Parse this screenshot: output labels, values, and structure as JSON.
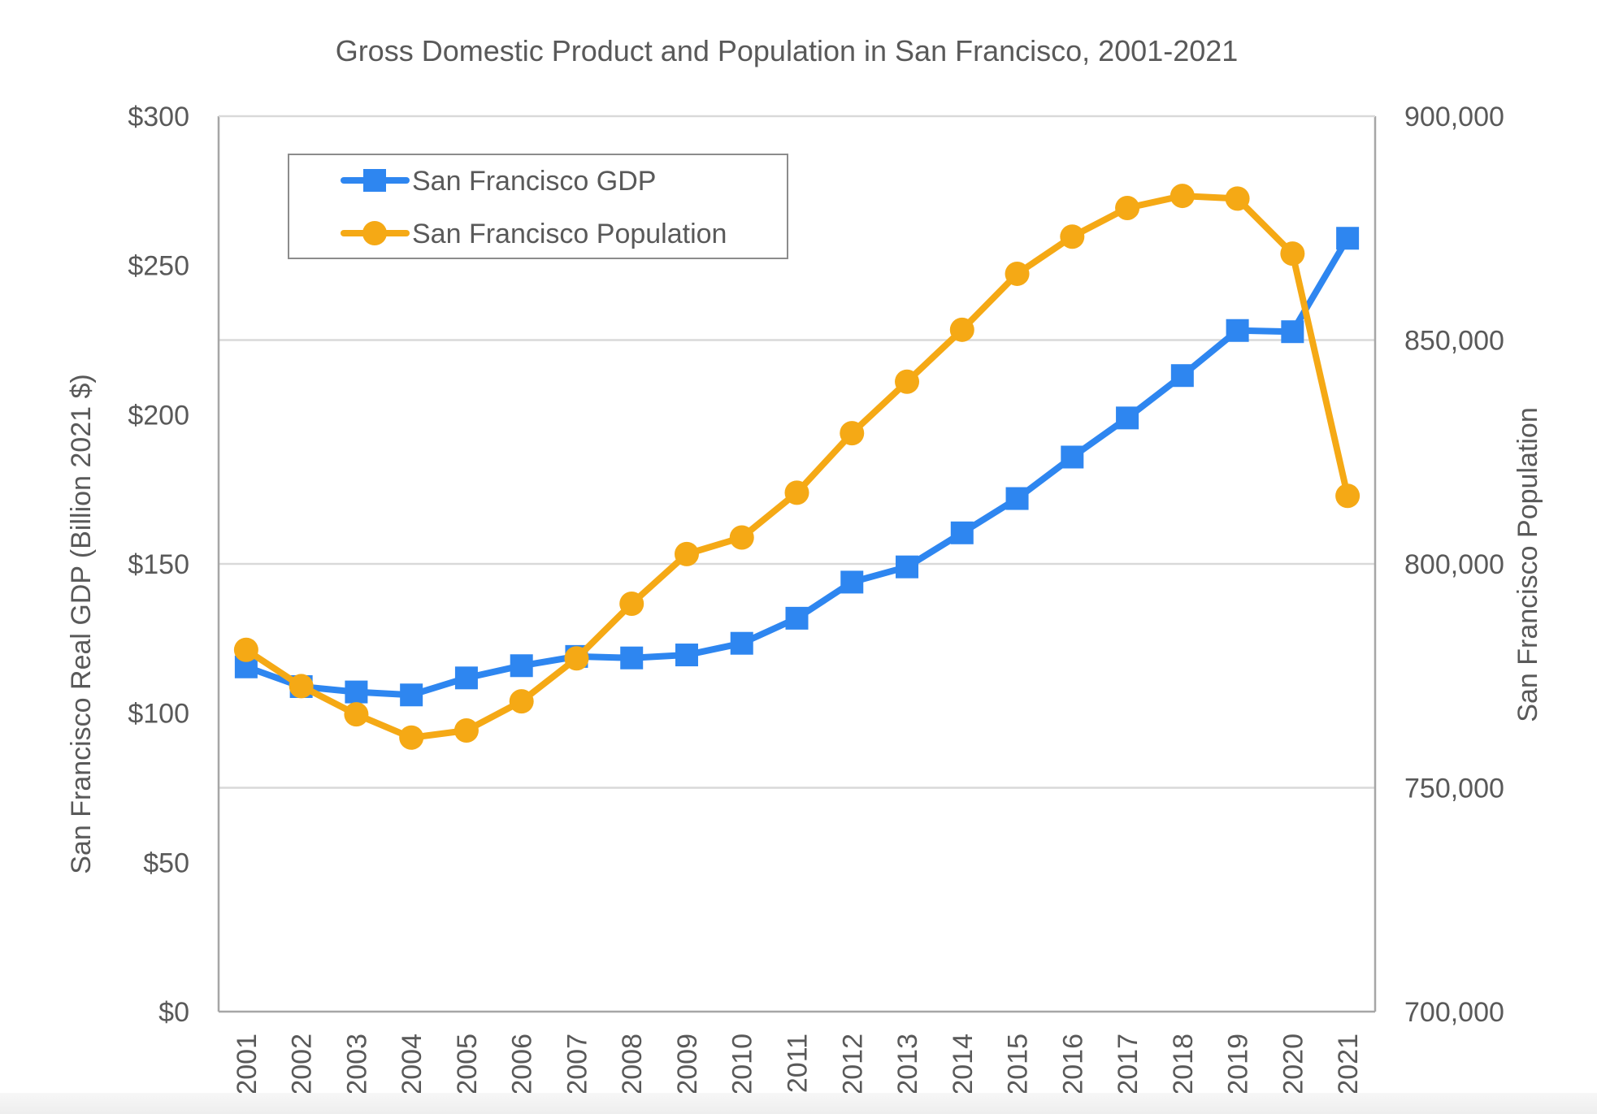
{
  "chart_data": {
    "type": "line",
    "title": "Gross Domestic Product and Population in San Francisco, 2001-2021",
    "categories": [
      "2001",
      "2002",
      "2003",
      "2004",
      "2005",
      "2006",
      "2007",
      "2008",
      "2009",
      "2010",
      "2011",
      "2012",
      "2013",
      "2014",
      "2015",
      "2016",
      "2017",
      "2018",
      "2019",
      "2020",
      "2021"
    ],
    "y_left": {
      "label": "San Francisco Real GDP  (Billion 2021 $)",
      "range": [
        0,
        300
      ],
      "ticks": [
        0,
        50,
        100,
        150,
        200,
        250,
        300
      ],
      "tick_labels": [
        "$0",
        "$50",
        "$100",
        "$150",
        "$200",
        "$250",
        "$300"
      ]
    },
    "y_right": {
      "label": "San Francisco Population",
      "range": [
        700000,
        900000
      ],
      "ticks": [
        700000,
        750000,
        800000,
        850000,
        900000
      ],
      "tick_labels": [
        "700,000",
        "750,000",
        "800,000",
        "850,000",
        "900,000"
      ]
    },
    "series": [
      {
        "name": "San Francisco GDP",
        "axis": "left",
        "color": "#2e86f0",
        "marker": "square",
        "values": [
          115.5,
          108.9,
          107.1,
          106.1,
          111.8,
          115.9,
          119.0,
          118.5,
          119.5,
          123.4,
          131.8,
          143.9,
          149.0,
          160.4,
          171.9,
          185.8,
          198.9,
          213.1,
          228.2,
          227.8,
          259.1
        ]
      },
      {
        "name": "San Francisco Population",
        "axis": "right",
        "color": "#f5a915",
        "marker": "circle",
        "values": [
          780800,
          772700,
          766400,
          761200,
          762800,
          769300,
          778900,
          791100,
          802200,
          805900,
          815900,
          829200,
          840700,
          852300,
          864800,
          873100,
          879500,
          882200,
          881600,
          869300,
          815200
        ]
      }
    ],
    "grid": "horizontal",
    "legend": "top-left"
  }
}
